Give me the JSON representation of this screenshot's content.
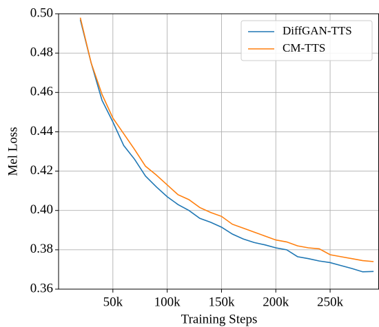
{
  "chart_data": {
    "type": "line",
    "x_label": "Training Steps",
    "y_label": "Mel Loss",
    "x": [
      20000,
      30000,
      40000,
      50000,
      60000,
      70000,
      80000,
      90000,
      100000,
      110000,
      120000,
      130000,
      140000,
      150000,
      160000,
      170000,
      180000,
      190000,
      200000,
      210000,
      220000,
      230000,
      240000,
      250000,
      260000,
      270000,
      280000,
      290000
    ],
    "series": [
      {
        "name": "DiffGAN-TTS",
        "color": "#1f77b4",
        "values": [
          0.497,
          0.475,
          0.456,
          0.445,
          0.433,
          0.426,
          0.4175,
          0.412,
          0.407,
          0.403,
          0.4,
          0.396,
          0.394,
          0.3915,
          0.388,
          0.3855,
          0.3837,
          0.3825,
          0.381,
          0.38,
          0.3765,
          0.3755,
          0.3743,
          0.3735,
          0.372,
          0.3705,
          0.3688,
          0.369
        ]
      },
      {
        "name": "CM-TTS",
        "color": "#ff7f0e",
        "values": [
          0.498,
          0.475,
          0.459,
          0.447,
          0.439,
          0.431,
          0.4225,
          0.418,
          0.413,
          0.408,
          0.4055,
          0.4015,
          0.399,
          0.397,
          0.393,
          0.391,
          0.389,
          0.387,
          0.385,
          0.384,
          0.382,
          0.381,
          0.3805,
          0.3775,
          0.3765,
          0.3755,
          0.3745,
          0.374
        ]
      }
    ],
    "xlim": [
      0,
      295000
    ],
    "xticks": [
      {
        "value": 50000,
        "label": "50k"
      },
      {
        "value": 100000,
        "label": "100k"
      },
      {
        "value": 150000,
        "label": "150k"
      },
      {
        "value": 200000,
        "label": "200k"
      },
      {
        "value": 250000,
        "label": "250k"
      }
    ],
    "ylim": [
      0.36,
      0.5
    ],
    "yticks": [
      {
        "value": 0.36,
        "label": "0.36"
      },
      {
        "value": 0.38,
        "label": "0.38"
      },
      {
        "value": 0.4,
        "label": "0.40"
      },
      {
        "value": 0.42,
        "label": "0.42"
      },
      {
        "value": 0.44,
        "label": "0.44"
      },
      {
        "value": 0.46,
        "label": "0.46"
      },
      {
        "value": 0.48,
        "label": "0.48"
      },
      {
        "value": 0.5,
        "label": "0.50"
      }
    ],
    "grid": true,
    "legend": "upper right"
  }
}
